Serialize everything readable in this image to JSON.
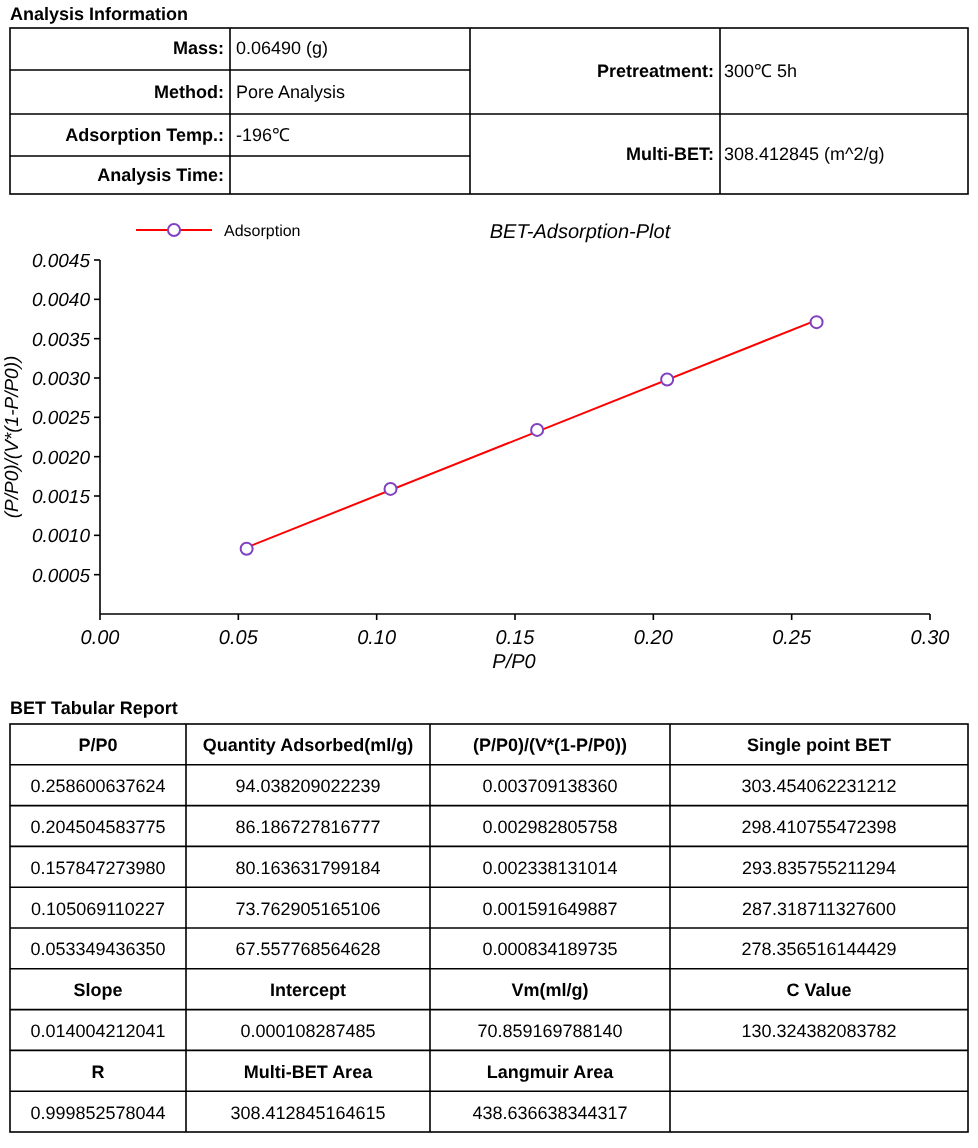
{
  "chart_data": [
    {
      "type": "other",
      "title": "Analysis Information",
      "annotations": [
        "Mass:",
        "0.06490 (g)",
        "Method:",
        "Pore Analysis",
        "Adsorption Temp.:",
        "-196℃",
        "Analysis Time:",
        "Pretreatment:",
        "300℃ 5h",
        "Multi-BET:",
        "308.412845 (m^2/g)"
      ]
    },
    {
      "type": "scatter",
      "title": "BET-Adsorption-Plot",
      "xlabel": "P/P0",
      "ylabel": "(P/P0)/(V*(1-P/P0))",
      "xlim": [
        0,
        0.3
      ],
      "ylim": [
        0,
        0.0045
      ],
      "xticks": [
        {
          "value": 0,
          "label": "0.00"
        },
        {
          "value": 0.05,
          "label": "0.05"
        },
        {
          "value": 0.1,
          "label": "0.10"
        },
        {
          "value": 0.15,
          "label": "0.15"
        },
        {
          "value": 0.2,
          "label": "0.20"
        },
        {
          "value": 0.25,
          "label": "0.25"
        },
        {
          "value": 0.3,
          "label": "0.30"
        }
      ],
      "yticks": [
        {
          "value": 0.0005,
          "label": "0.0005"
        },
        {
          "value": 0.001,
          "label": "0.0010"
        },
        {
          "value": 0.0015,
          "label": "0.0015"
        },
        {
          "value": 0.002,
          "label": "0.0020"
        },
        {
          "value": 0.0025,
          "label": "0.0025"
        },
        {
          "value": 0.003,
          "label": "0.0030"
        },
        {
          "value": 0.0035,
          "label": "0.0035"
        },
        {
          "value": 0.004,
          "label": "0.0040"
        },
        {
          "value": 0.0045,
          "label": "0.0045"
        }
      ],
      "legend": "top left",
      "series": [
        {
          "type": "line",
          "color": "#ff0000",
          "x": [
            0.0533,
            0.2586
          ],
          "values": [
            0.00085,
            0.00373
          ]
        },
        {
          "type": "scatter",
          "name": "Adsorption",
          "color": "#8040c0",
          "marker": "circle",
          "x": [
            0.053,
            0.105,
            0.158,
            0.205,
            0.259
          ],
          "values": [
            0.00083,
            0.00159,
            0.00234,
            0.00298,
            0.00371
          ]
        }
      ]
    },
    {
      "type": "other",
      "title": "BET Tabular Report",
      "annotations": [
        "P/P0",
        "Quantity Adsorbed(ml/g)",
        "(P/P0)/(V*(1-P/P0))",
        "Single point BET",
        "0.258600637624",
        "94.038209022239",
        "0.003709138360",
        "303.454062231212",
        "0.204504583775",
        "86.186727816777",
        "0.002982805758",
        "298.410755472398",
        "0.157847273980",
        "80.163631799184",
        "0.002338131014",
        "293.835755211294",
        "0.105069110227",
        "73.762905165106",
        "0.001591649887",
        "287.318711327600",
        "0.053349436350",
        "67.557768564628",
        "0.000834189735",
        "278.356516144429",
        "Slope",
        "Intercept",
        "Vm(ml/g)",
        "C Value",
        "0.014004212041",
        "0.000108287485",
        "70.859169788140",
        "130.324382083782",
        "R",
        "Multi-BET Area",
        "Langmuir Area",
        "0.999852578044",
        "308.412845164615",
        "438.636638344317"
      ]
    }
  ]
}
